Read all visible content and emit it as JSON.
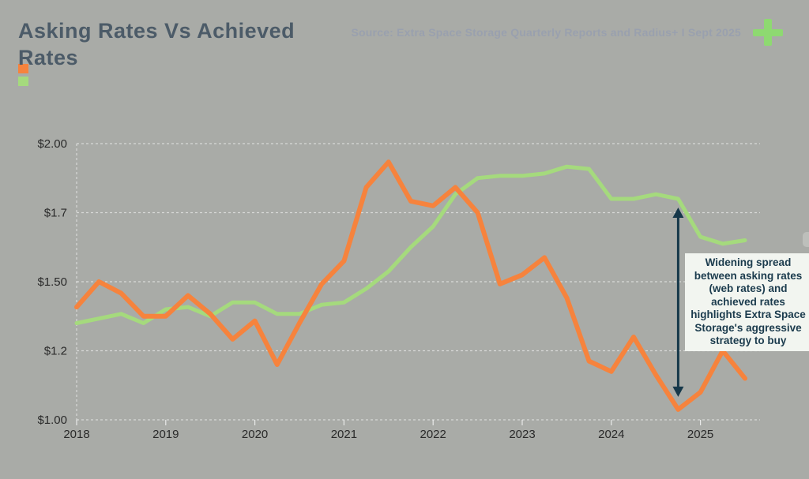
{
  "page": {
    "background": "#a9aba7"
  },
  "header": {
    "title": "Asking Rates Vs Achieved Rates",
    "source": "Source: Extra Space Storage Quarterly Reports and Radius+ I Sept 2025",
    "plus_icon_color": "#8ed971"
  },
  "legend": {
    "items": [
      {
        "swatch": "orange",
        "color": "#f6833d"
      },
      {
        "swatch": "green",
        "color": "#a5da7d"
      }
    ]
  },
  "chart_data": {
    "type": "line",
    "title": "Asking Rates Vs Achieved Rates",
    "x_axis": {
      "labels": [
        "2018",
        "2019",
        "2020",
        "2021",
        "2022",
        "2023",
        "2024",
        "2025"
      ],
      "points_per_year": 4,
      "range": [
        "2018 Q1",
        "2025 Q3"
      ]
    },
    "y_axis": {
      "labels": [
        "$2.00",
        "$1.7",
        "$1.50",
        "$1.2",
        "$1.00"
      ],
      "values": [
        2.0,
        1.7,
        1.5,
        1.2,
        1.0
      ],
      "prefix": "$"
    },
    "grid": "dashed-white",
    "series": [
      {
        "name": "achieved-rates",
        "color": "#a5da7d",
        "values": [
          1.32,
          1.34,
          1.36,
          1.32,
          1.38,
          1.39,
          1.35,
          1.41,
          1.41,
          1.36,
          1.36,
          1.4,
          1.41,
          1.47,
          1.53,
          1.6,
          1.66,
          1.78,
          1.85,
          1.86,
          1.86,
          1.87,
          1.9,
          1.89,
          1.76,
          1.76,
          1.78,
          1.76,
          1.63,
          1.61,
          1.62
        ]
      },
      {
        "name": "asking-rates-web-rates",
        "color": "#f6833d",
        "values": [
          1.39,
          1.5,
          1.45,
          1.35,
          1.35,
          1.44,
          1.36,
          1.25,
          1.33,
          1.16,
          1.32,
          1.49,
          1.56,
          1.81,
          1.92,
          1.75,
          1.73,
          1.81,
          1.7,
          1.49,
          1.52,
          1.57,
          1.43,
          1.17,
          1.14,
          1.26,
          1.13,
          1.03,
          1.08,
          1.2,
          1.12
        ]
      }
    ],
    "annotation": {
      "text": "Widening spread between asking rates (web rates) and achieved rates highlights Extra Space Storage's aggressive strategy to buy",
      "arrow": {
        "shape": "vertical-double-headed",
        "color": "#16384a",
        "x_point_index": 27,
        "from_value": 1.76,
        "to_value": 1.03
      }
    }
  }
}
